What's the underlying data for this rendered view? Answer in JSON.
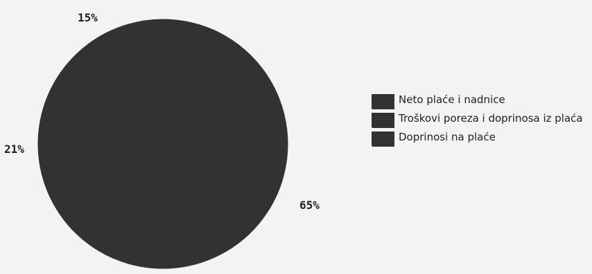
{
  "chart_data": {
    "type": "pie",
    "title": "",
    "slices": [
      {
        "label": "Neto plaće i nadnice",
        "value": 65,
        "value_label": "65%",
        "color": "#323232"
      },
      {
        "label": "Troškovi poreza i doprinosa iz plaća",
        "value": 15,
        "value_label": "15%",
        "color": "#323232"
      },
      {
        "label": "Doprinosi na plaće",
        "value": 21,
        "value_label": "21%",
        "color": "#323232"
      }
    ],
    "legend_position": "right"
  }
}
